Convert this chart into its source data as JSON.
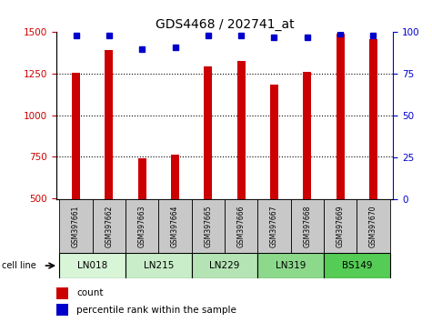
{
  "title": "GDS4468 / 202741_at",
  "samples": [
    "GSM397661",
    "GSM397662",
    "GSM397663",
    "GSM397664",
    "GSM397665",
    "GSM397666",
    "GSM397667",
    "GSM397668",
    "GSM397669",
    "GSM397670"
  ],
  "counts": [
    1255,
    1395,
    740,
    760,
    1295,
    1325,
    1185,
    1260,
    1490,
    1460
  ],
  "percentile_ranks": [
    98,
    98,
    90,
    91,
    98,
    98,
    97,
    97,
    99,
    98
  ],
  "cell_lines": [
    {
      "name": "LN018",
      "span": [
        0,
        2
      ],
      "color": "#d8f5d8"
    },
    {
      "name": "LN215",
      "span": [
        2,
        4
      ],
      "color": "#c8edc8"
    },
    {
      "name": "LN229",
      "span": [
        4,
        6
      ],
      "color": "#b4e4b4"
    },
    {
      "name": "LN319",
      "span": [
        6,
        8
      ],
      "color": "#8cd98c"
    },
    {
      "name": "BS149",
      "span": [
        8,
        10
      ],
      "color": "#55cc55"
    }
  ],
  "ylim_left": [
    490,
    1500
  ],
  "ylim_right": [
    0,
    100
  ],
  "yticks_left": [
    500,
    750,
    1000,
    1250,
    1500
  ],
  "yticks_right": [
    0,
    25,
    50,
    75,
    100
  ],
  "bar_color": "#cc0000",
  "dot_color": "#0000cc",
  "bar_width": 0.25,
  "title_fontsize": 10,
  "tick_label_color_left": "#cc0000",
  "tick_label_color_right": "#0000cc",
  "sample_box_color": "#c8c8c8",
  "legend_items": [
    {
      "color": "#cc0000",
      "label": "count"
    },
    {
      "color": "#0000cc",
      "label": "percentile rank within the sample"
    }
  ]
}
